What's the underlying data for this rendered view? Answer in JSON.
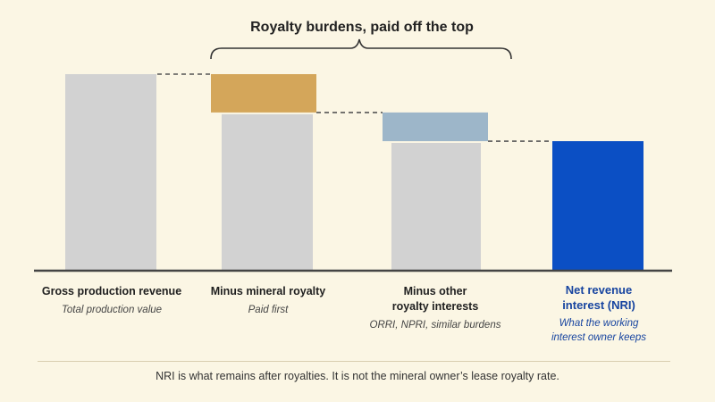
{
  "title": "Royalty burdens, paid off the top",
  "footnote": "NRI is what remains after royalties. It is not the mineral owner’s lease royalty rate.",
  "colors": {
    "background": "#fbf6e4",
    "base_bar": "#d2d2d2",
    "mineral_royalty": "#d4a65a",
    "other_royalty": "#9db6c9",
    "nri": "#0b4fc4",
    "axis": "#444444",
    "accent_text": "#1845a0"
  },
  "categories": [
    {
      "label": "Gross production revenue",
      "sub": "Total production value"
    },
    {
      "label": "Minus mineral royalty",
      "sub": "Paid first"
    },
    {
      "label": "Minus other\nroyalty interests",
      "sub": "ORRI, NPRI, similar burdens"
    },
    {
      "label": "Net revenue\ninterest (NRI)",
      "sub": "What the working\ninterest owner keeps"
    }
  ],
  "chart_data": {
    "type": "bar",
    "subtype": "waterfall",
    "categories": [
      "Gross production revenue",
      "Minus mineral royalty",
      "Minus other royalty interests",
      "Net revenue interest (NRI)"
    ],
    "steps": [
      {
        "name": "Gross production revenue",
        "start": 0,
        "end": 100,
        "kind": "total"
      },
      {
        "name": "Minus mineral royalty",
        "start": 0,
        "end": 80.5,
        "kind": "base"
      },
      {
        "name": "Minus mineral royalty",
        "start": 80.5,
        "end": 100,
        "kind": "decrease-mineral"
      },
      {
        "name": "Minus other royalty interests",
        "start": 0,
        "end": 65.9,
        "kind": "base"
      },
      {
        "name": "Minus other royalty interests",
        "start": 65.9,
        "end": 80.5,
        "kind": "decrease-other"
      },
      {
        "name": "Net revenue interest (NRI)",
        "start": 0,
        "end": 65.9,
        "kind": "result"
      }
    ],
    "ylim": [
      0,
      100
    ],
    "axis_labels_shown": false,
    "grid": false,
    "connectors": "dashed"
  }
}
